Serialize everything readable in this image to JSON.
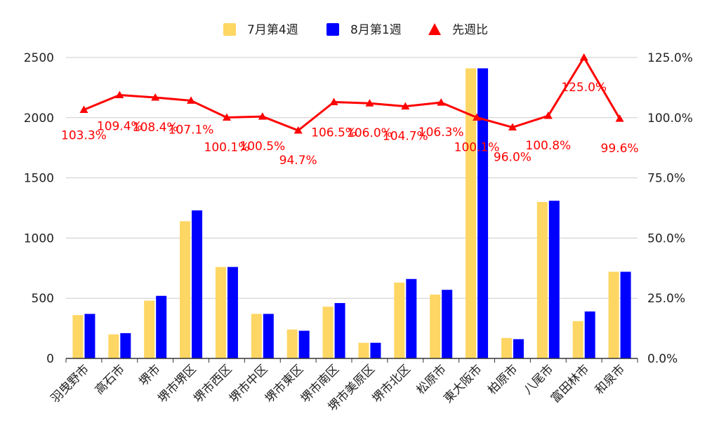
{
  "chart_data": {
    "type": "bar",
    "combo": "bar + line (secondary axis)",
    "title": "",
    "categories": [
      "羽曳野市",
      "高石市",
      "堺市",
      "堺市堺区",
      "堺市西区",
      "堺市中区",
      "堺市東区",
      "堺市南区",
      "堺市美原区",
      "堺市北区",
      "松原市",
      "東大阪市",
      "柏原市",
      "八尾市",
      "富田林市",
      "和泉市"
    ],
    "series": [
      {
        "name": "7月第4週",
        "type": "bar",
        "axis": "left",
        "color": "#fdd663",
        "values": [
          360,
          200,
          480,
          1140,
          760,
          370,
          240,
          430,
          130,
          630,
          530,
          2410,
          170,
          1300,
          310,
          720
        ]
      },
      {
        "name": "8月第1週",
        "type": "bar",
        "axis": "left",
        "color": "#0000ff",
        "values": [
          370,
          210,
          520,
          1230,
          760,
          370,
          230,
          460,
          130,
          660,
          570,
          2410,
          160,
          1310,
          390,
          720
        ]
      },
      {
        "name": "先週比",
        "type": "line",
        "axis": "right",
        "color": "#ff0000",
        "marker": "triangle",
        "values": [
          103.3,
          109.4,
          108.4,
          107.1,
          100.1,
          100.5,
          94.7,
          106.5,
          106.0,
          104.7,
          106.3,
          100.1,
          96.0,
          100.8,
          125.0,
          99.6
        ],
        "labels": [
          "103.3%",
          "109.4%",
          "108.4%",
          "107.1%",
          "100.1%",
          "100.5%",
          "94.7%",
          "106.5%",
          "106.0%",
          "104.7%",
          "106.3%",
          "100.1%",
          "96.0%",
          "100.8%",
          "125.0%",
          "99.6%"
        ]
      }
    ],
    "y_left": {
      "min": 0,
      "max": 2500,
      "ticks": [
        "0",
        "500",
        "1000",
        "1500",
        "2000",
        "2500"
      ]
    },
    "y_right": {
      "min": 0,
      "max": 125,
      "ticks": [
        "0.0%",
        "25.0%",
        "50.0%",
        "75.0%",
        "100.0%",
        "125.0%"
      ]
    },
    "grid": true,
    "legend_position": "top-center"
  }
}
